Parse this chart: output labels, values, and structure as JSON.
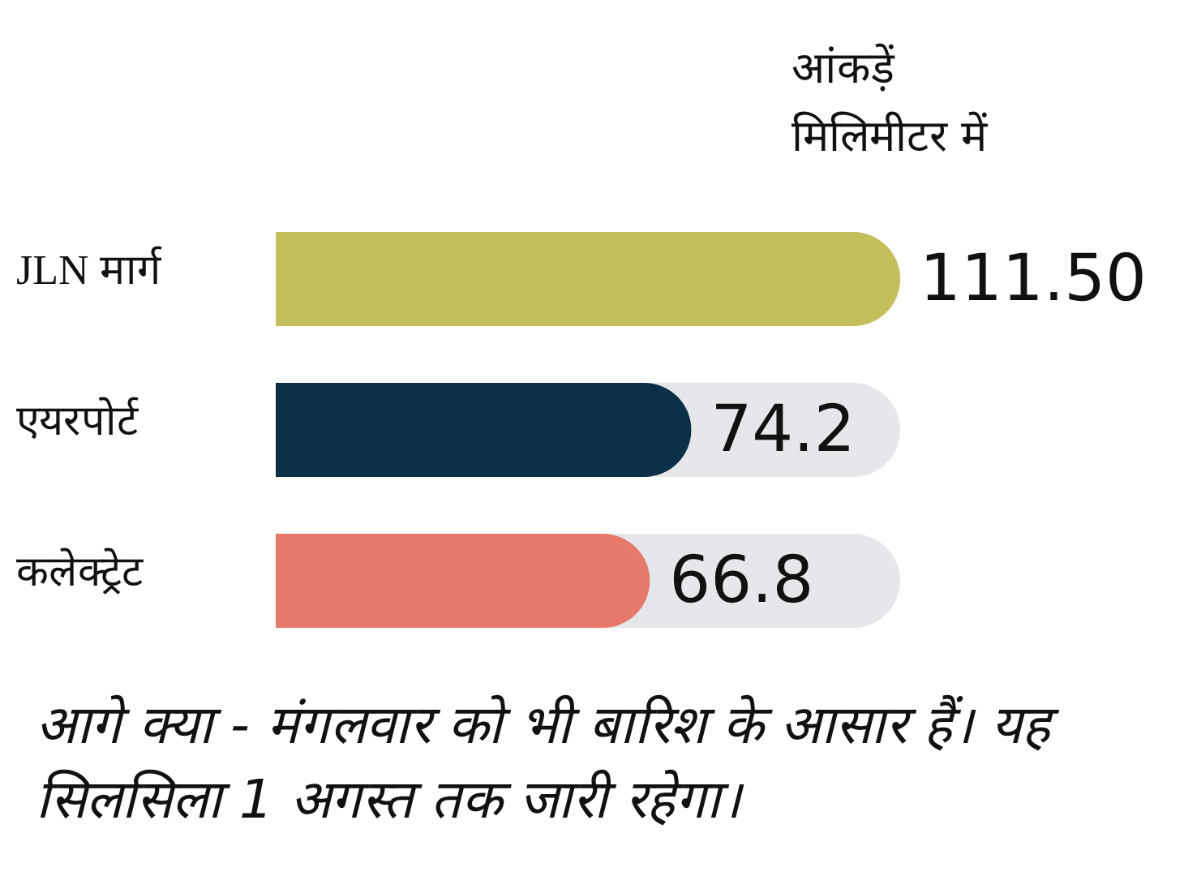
{
  "chart_data": {
    "type": "bar",
    "orientation": "horizontal",
    "subtitle": "आंकड़ें मिलिमीटर में",
    "categories": [
      "JLN मार्ग",
      "एयरपोर्ट",
      "कलेक्ट्रेट"
    ],
    "values": [
      111.5,
      74.2,
      66.8
    ],
    "colors": [
      "#c3bf5a",
      "#0c3048",
      "#e6796a"
    ],
    "value_labels": [
      "111.50",
      "74.2",
      "66.8"
    ],
    "annotations": [
      "आगे क्या - मंगलवार को भी बारिश के आसार हैं। यह सिलसिला 1 अगस्त तक जारी रहेगा।"
    ]
  }
}
